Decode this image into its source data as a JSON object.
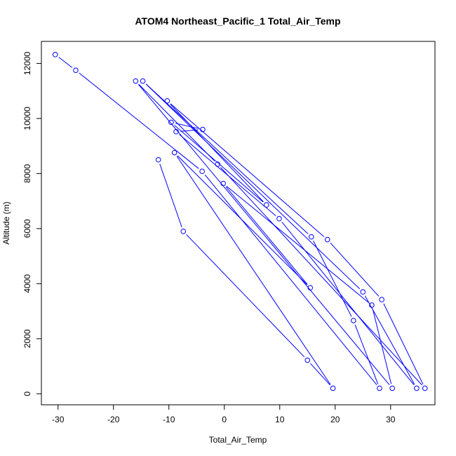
{
  "chart_data": {
    "type": "line",
    "title": "ATOM4 Northeast_Pacific_1 Total_Air_Temp",
    "xlabel": "Total_Air_Temp",
    "ylabel": "Altitude (m)",
    "xlim": [
      -33,
      38
    ],
    "ylim": [
      -400,
      12800
    ],
    "xticks": [
      -30,
      -20,
      -10,
      0,
      10,
      20,
      30
    ],
    "yticks": [
      0,
      2000,
      4000,
      6000,
      8000,
      10000,
      12000
    ],
    "xtick_labels": [
      "-30",
      "-20",
      "-10",
      "0",
      "10",
      "20",
      "30"
    ],
    "ytick_labels": [
      "0",
      "2000",
      "4000",
      "6000",
      "8000",
      "10000",
      "12000"
    ],
    "grid": false,
    "series": [
      {
        "color": "#0000ff",
        "marker": "open-circle",
        "points": [
          {
            "x": -30.5,
            "y": 12320
          },
          {
            "x": -26.8,
            "y": 11750
          },
          {
            "x": -4.0,
            "y": 8080
          },
          {
            "x": 28.0,
            "y": 200
          },
          {
            "x": 23.3,
            "y": 2660
          },
          {
            "x": 15.7,
            "y": 5700
          },
          {
            "x": -14.7,
            "y": 11360
          },
          {
            "x": 25.0,
            "y": 3700
          },
          {
            "x": 34.7,
            "y": 200
          },
          {
            "x": 9.9,
            "y": 6360
          },
          {
            "x": -8.7,
            "y": 9520
          },
          {
            "x": -3.9,
            "y": 9600
          },
          {
            "x": -9.6,
            "y": 9860
          },
          {
            "x": 7.6,
            "y": 6860
          },
          {
            "x": -10.3,
            "y": 10640
          },
          {
            "x": 18.6,
            "y": 5600
          },
          {
            "x": 28.4,
            "y": 3420
          },
          {
            "x": 36.2,
            "y": 200
          },
          {
            "x": -1.2,
            "y": 8340
          },
          {
            "x": -16.0,
            "y": 11360
          },
          {
            "x": 30.3,
            "y": 200
          },
          {
            "x": 26.6,
            "y": 3220
          },
          {
            "x": -0.2,
            "y": 7640
          },
          {
            "x": 15.5,
            "y": 3850
          },
          {
            "x": -9.0,
            "y": 8760
          },
          {
            "x": 19.6,
            "y": 200
          },
          {
            "x": 15.0,
            "y": 1220
          },
          {
            "x": -7.4,
            "y": 5900
          },
          {
            "x": -11.9,
            "y": 8500
          }
        ]
      }
    ]
  }
}
